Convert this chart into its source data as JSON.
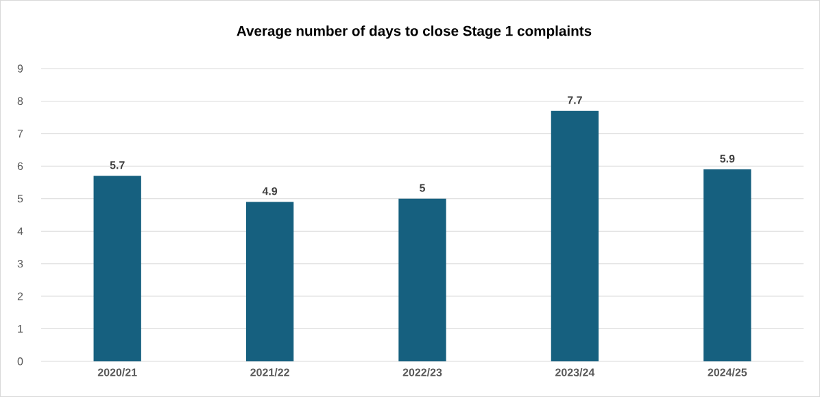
{
  "chart_data": {
    "type": "bar",
    "title": "Average number of days to close Stage 1 complaints",
    "categories": [
      "2020/21",
      "2021/22",
      "2022/23",
      "2023/24",
      "2024/25"
    ],
    "values": [
      5.7,
      4.9,
      5,
      7.7,
      5.9
    ],
    "color": "#16607f",
    "ylim": [
      0,
      9
    ],
    "yticks": [
      0,
      1,
      2,
      3,
      4,
      5,
      6,
      7,
      8,
      9
    ],
    "grid": "y",
    "data_labels": true
  }
}
